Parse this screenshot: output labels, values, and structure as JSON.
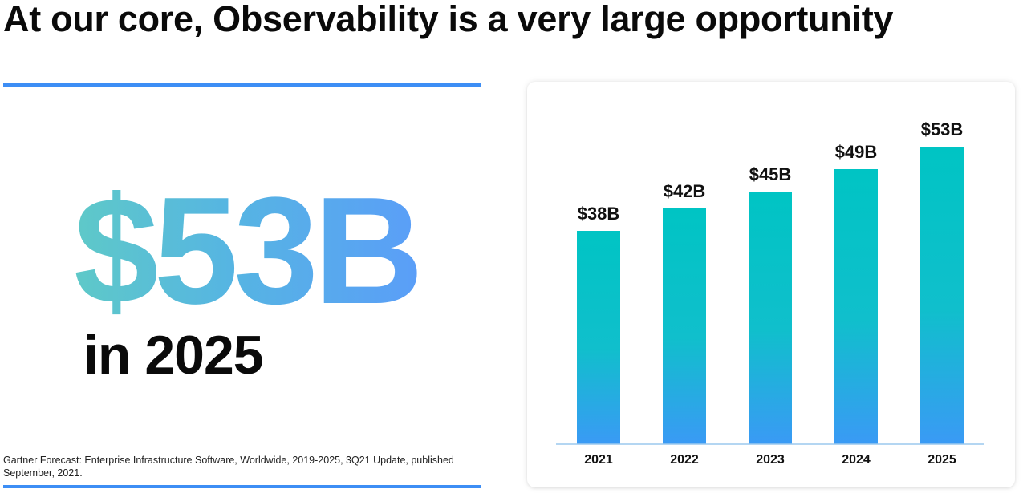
{
  "slide": {
    "title": "At our core, Observability is a very large opportunity",
    "highlight_value": "$53B",
    "highlight_sub": "in 2025",
    "source": "Gartner Forecast: Enterprise Infrastructure Software, Worldwide, 2019-2025, 3Q21 Update, published September, 2021."
  },
  "colors": {
    "accent_line": "#3d8ef5",
    "bar_top": "#00c4c4",
    "bar_bottom": "#3a9af5",
    "axis": "#9cc9ee"
  },
  "chart_data": {
    "type": "bar",
    "title": "",
    "xlabel": "",
    "ylabel": "",
    "categories": [
      "2021",
      "2022",
      "2023",
      "2024",
      "2025"
    ],
    "values": [
      38,
      42,
      45,
      49,
      53
    ],
    "data_labels": [
      "$38B",
      "$42B",
      "$45B",
      "$49B",
      "$53B"
    ],
    "unit": "$B",
    "ylim": [
      0,
      55
    ],
    "grid": false,
    "legend": "none"
  }
}
